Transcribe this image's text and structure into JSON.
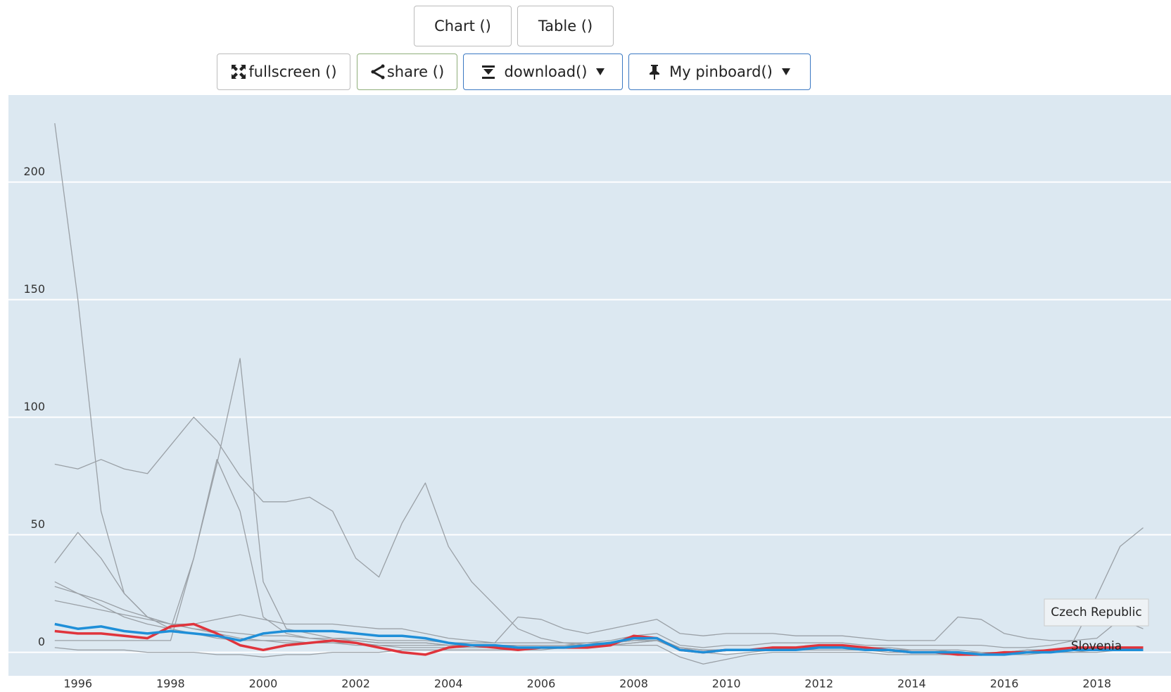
{
  "buttons": {
    "chart": "Chart ()",
    "table": "Table ()",
    "fullscreen": "fullscreen ()",
    "share": "share ()",
    "download": "download()",
    "pinboard": "My pinboard()"
  },
  "chart_data": {
    "type": "line",
    "x": [
      1995.5,
      1996,
      1996.5,
      1997,
      1997.5,
      1998,
      1998.5,
      1999,
      1999.5,
      2000,
      2000.5,
      2001,
      2001.5,
      2002,
      2002.5,
      2003,
      2003.5,
      2004,
      2004.5,
      2005,
      2005.5,
      2006,
      2006.5,
      2007,
      2007.5,
      2008,
      2008.5,
      2009,
      2009.5,
      2010,
      2010.5,
      2011,
      2011.5,
      2012,
      2012.5,
      2013,
      2013.5,
      2014,
      2014.5,
      2015,
      2015.5,
      2016,
      2016.5,
      2017,
      2017.5,
      2018,
      2018.5,
      2019
    ],
    "xlim": [
      1994.5,
      2019.6
    ],
    "xticks": [
      1996,
      1998,
      2000,
      2002,
      2004,
      2006,
      2008,
      2010,
      2012,
      2014,
      2016,
      2018
    ],
    "ylim": [
      -10,
      237
    ],
    "yticks": [
      0,
      50,
      100,
      150,
      200
    ],
    "grid": true,
    "series": [
      {
        "color": "#9aa0a6",
        "values": [
          225,
          150,
          60,
          25,
          15,
          10,
          8,
          6,
          5,
          5,
          5,
          4,
          4,
          4,
          3,
          3,
          3,
          3,
          3,
          3,
          3,
          3,
          3,
          4,
          4,
          5,
          5,
          1,
          0,
          1,
          1,
          2,
          2,
          2,
          2,
          1,
          1,
          0,
          0,
          0,
          0,
          0,
          0,
          1,
          1,
          2,
          2,
          2
        ]
      },
      {
        "color": "#9aa0a6",
        "values": [
          80,
          78,
          82,
          78,
          76,
          88,
          100,
          90,
          75,
          64,
          64,
          66,
          60,
          40,
          32,
          55,
          72,
          45,
          30,
          20,
          10,
          6,
          4,
          3,
          3,
          4,
          5,
          2,
          1,
          1,
          1,
          2,
          2,
          2,
          2,
          2,
          2,
          1,
          1,
          1,
          0,
          0,
          0,
          1,
          1,
          1,
          1,
          1
        ]
      },
      {
        "color": "#9aa0a6",
        "values": [
          5,
          5,
          5,
          5,
          5,
          5,
          40,
          80,
          125,
          30,
          10,
          8,
          6,
          5,
          4,
          4,
          4,
          3,
          3,
          3,
          3,
          3,
          3,
          3,
          4,
          5,
          5,
          1,
          0,
          1,
          1,
          2,
          2,
          2,
          2,
          2,
          1,
          1,
          1,
          0,
          0,
          0,
          1,
          1,
          1,
          2,
          2,
          2
        ]
      },
      {
        "color": "#9aa0a6",
        "values": [
          30,
          25,
          20,
          15,
          12,
          10,
          40,
          82,
          60,
          15,
          8,
          6,
          5,
          5,
          4,
          4,
          4,
          3,
          3,
          3,
          3,
          3,
          3,
          3,
          4,
          5,
          6,
          2,
          1,
          1,
          1,
          2,
          2,
          2,
          2,
          2,
          1,
          1,
          1,
          0,
          0,
          0,
          1,
          1,
          1,
          2,
          2,
          2
        ]
      },
      {
        "color": "#9aa0a6",
        "values": [
          38,
          51,
          40,
          25,
          15,
          12,
          10,
          9,
          8,
          7,
          7,
          6,
          6,
          6,
          5,
          5,
          5,
          4,
          4,
          4,
          4,
          4,
          4,
          4,
          5,
          7,
          8,
          3,
          2,
          3,
          3,
          4,
          4,
          4,
          4,
          3,
          3,
          3,
          3,
          3,
          3,
          2,
          2,
          3,
          5,
          24,
          45,
          53
        ]
      },
      {
        "color": "#9aa0a6",
        "values": [
          28,
          25,
          22,
          18,
          15,
          12,
          12,
          14,
          16,
          14,
          12,
          12,
          12,
          11,
          10,
          10,
          8,
          6,
          5,
          4,
          15,
          14,
          10,
          8,
          10,
          12,
          14,
          8,
          7,
          8,
          8,
          8,
          7,
          7,
          7,
          6,
          5,
          5,
          5,
          15,
          14,
          8,
          6,
          5,
          5,
          6,
          14,
          10
        ]
      },
      {
        "color": "#9aa0a6",
        "values": [
          22,
          20,
          18,
          16,
          14,
          12,
          10,
          8,
          6,
          5,
          4,
          4,
          4,
          3,
          3,
          2,
          2,
          2,
          2,
          2,
          2,
          2,
          2,
          2,
          3,
          3,
          3,
          -2,
          -5,
          -3,
          -1,
          0,
          0,
          0,
          0,
          0,
          -1,
          -1,
          -1,
          -1,
          -1,
          -1,
          -1,
          0,
          0,
          0,
          1,
          1
        ]
      },
      {
        "color": "#9aa0a6",
        "values": [
          2,
          1,
          1,
          1,
          0,
          0,
          0,
          -1,
          -1,
          -2,
          -1,
          -1,
          0,
          0,
          0,
          1,
          1,
          1,
          1,
          1,
          1,
          1,
          2,
          2,
          3,
          4,
          5,
          2,
          0,
          -1,
          0,
          1,
          1,
          1,
          1,
          1,
          0,
          0,
          0,
          0,
          0,
          0,
          0,
          0,
          0,
          1,
          1,
          1
        ]
      },
      {
        "name": "Czech Republic",
        "color": "#e0343c",
        "values": [
          9,
          8,
          8,
          7,
          6,
          11,
          12,
          8,
          3,
          1,
          3,
          4,
          5,
          4,
          2,
          0,
          -1,
          2,
          3,
          2,
          1,
          2,
          2,
          2,
          3,
          7,
          6,
          1,
          0,
          1,
          1,
          2,
          2,
          3,
          3,
          2,
          1,
          0,
          0,
          -1,
          -1,
          0,
          0,
          1,
          2,
          2,
          2,
          2
        ]
      },
      {
        "name": "Slovenia",
        "color": "#1f8fd8",
        "values": [
          12,
          10,
          11,
          9,
          8,
          9,
          8,
          7,
          5,
          8,
          9,
          9,
          9,
          8,
          7,
          7,
          6,
          4,
          3,
          3,
          2,
          2,
          2,
          3,
          4,
          6,
          6,
          1,
          0,
          1,
          1,
          1,
          1,
          2,
          2,
          1,
          1,
          0,
          0,
          0,
          -1,
          -1,
          0,
          0,
          1,
          1,
          1,
          1
        ]
      }
    ]
  }
}
